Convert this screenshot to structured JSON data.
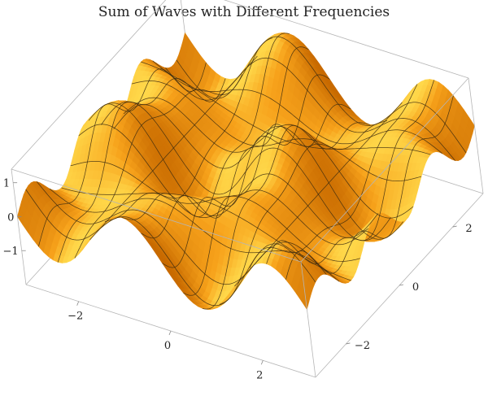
{
  "chart_data": {
    "type": "surface3d",
    "title": "Sum of Waves with Different Frequencies",
    "xlabel": "",
    "ylabel": "",
    "zlabel": "",
    "x_range": [
      -3.14159,
      3.14159
    ],
    "y_range": [
      -3.14159,
      3.14159
    ],
    "z_range": [
      -2,
      1.4
    ],
    "x_ticks": [
      {
        "value": -2,
        "label": "−2"
      },
      {
        "value": 0,
        "label": "0"
      },
      {
        "value": 2,
        "label": "2"
      }
    ],
    "y_ticks": [
      {
        "value": -2,
        "label": "−2"
      },
      {
        "value": 0,
        "label": "0"
      },
      {
        "value": 2,
        "label": "2"
      }
    ],
    "z_ticks": [
      {
        "value": -1,
        "label": "−1"
      },
      {
        "value": 0,
        "label": "0"
      },
      {
        "value": 1,
        "label": "1"
      }
    ],
    "mesh_lines": 15,
    "colors": {
      "surface_light": "#ffd84a",
      "surface_mid": "#f7a21b",
      "surface_dark": "#c86a00",
      "mesh": "#3a2a10",
      "box": "#b5b5b5"
    }
  }
}
